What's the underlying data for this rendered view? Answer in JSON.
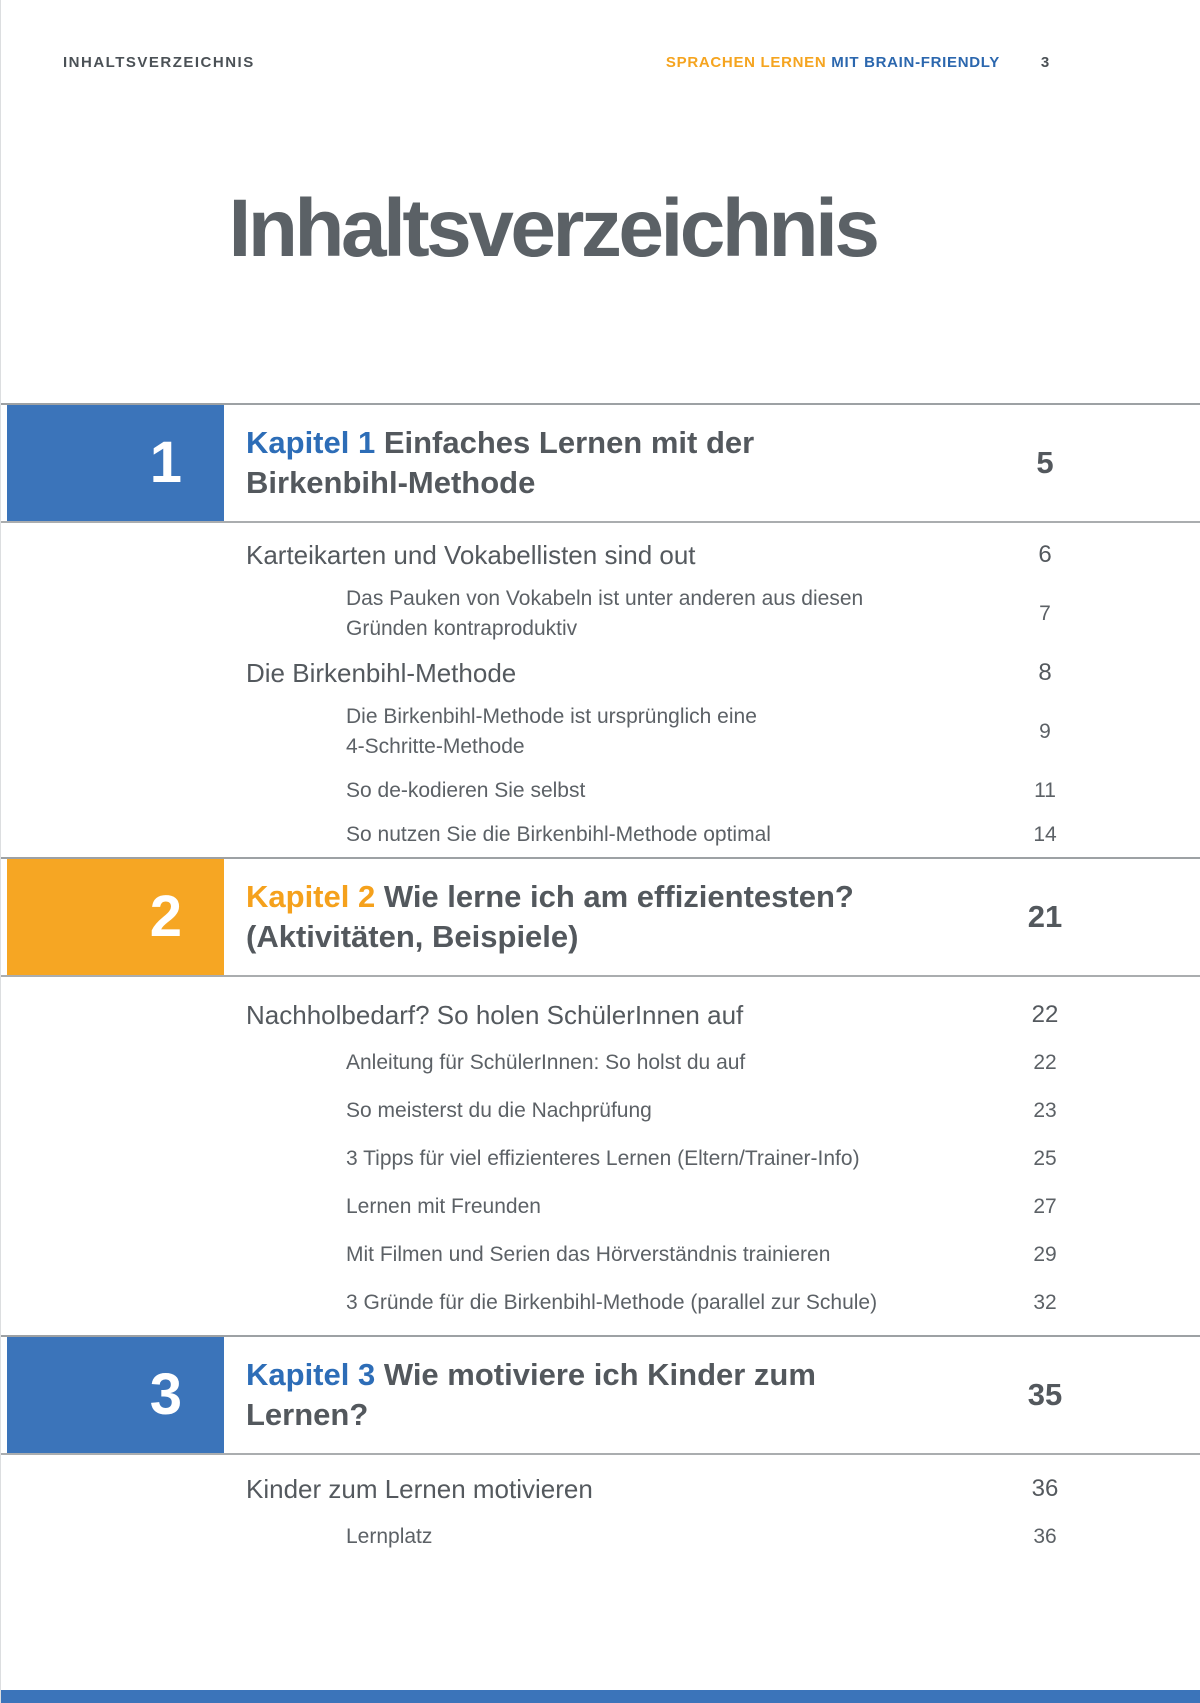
{
  "header": {
    "left_title": "INHALTSVERZEICHNIS",
    "brand_orange": "SPRACHEN LERNEN",
    "brand_blue": " MIT BRAIN-FRIENDLY",
    "page_number": "3"
  },
  "title": "Inhaltsverzeichnis",
  "colors": {
    "blue_box": "#3b74ba",
    "blue_text": "#2d6db7",
    "orange_box": "#f6a623",
    "orange_text": "#f5a11c"
  },
  "chapters": [
    {
      "number": "1",
      "accent": "blue",
      "label": "Kapitel 1",
      "title_lines": [
        "Einfaches Lernen mit der",
        "Birkenbihl-Methode"
      ],
      "page": "5",
      "entries": [
        {
          "level": 1,
          "lines": [
            "Karteikarten und Vokabellisten sind out"
          ],
          "page": "6"
        },
        {
          "level": 2,
          "lines": [
            "Das Pauken von Vokabeln ist unter anderen aus diesen",
            "Gründen kontraproduktiv"
          ],
          "page": "7"
        },
        {
          "level": 1,
          "lines": [
            "Die Birkenbihl-Methode"
          ],
          "page": "8"
        },
        {
          "level": 2,
          "lines": [
            "Die Birkenbihl-Methode ist ursprünglich eine",
            "4-Schritte-Methode"
          ],
          "page": "9"
        },
        {
          "level": 2,
          "lines": [
            "So de-kodieren Sie selbst"
          ],
          "page": "11"
        },
        {
          "level": 2,
          "lines": [
            "So nutzen Sie die Birkenbihl-Methode optimal"
          ],
          "page": "14"
        }
      ]
    },
    {
      "number": "2",
      "accent": "orange",
      "label": "Kapitel 2",
      "title_lines": [
        "Wie lerne ich am effizientesten?",
        "(Aktivitäten, Beispiele)"
      ],
      "page": "21",
      "entries": [
        {
          "level": 1,
          "lines": [
            "Nachholbedarf? So holen SchülerInnen auf"
          ],
          "page": "22"
        },
        {
          "level": 2,
          "lines": [
            "Anleitung für SchülerInnen: So holst du auf"
          ],
          "page": "22"
        },
        {
          "level": 2,
          "lines": [
            "So meisterst du die Nachprüfung"
          ],
          "page": "23"
        },
        {
          "level": 2,
          "lines": [
            "3 Tipps für viel effizienteres Lernen (Eltern/Trainer-Info)"
          ],
          "page": "25"
        },
        {
          "level": 2,
          "lines": [
            "Lernen mit Freunden"
          ],
          "page": "27"
        },
        {
          "level": 2,
          "lines": [
            "Mit Filmen und Serien das Hörverständnis trainieren"
          ],
          "page": "29"
        },
        {
          "level": 2,
          "lines": [
            "3 Gründe für die Birkenbihl-Methode (parallel zur Schule)"
          ],
          "page": "32"
        }
      ]
    },
    {
      "number": "3",
      "accent": "blue",
      "label": "Kapitel 3",
      "title_lines": [
        "Wie motiviere ich Kinder zum",
        "Lernen?"
      ],
      "page": "35",
      "entries": [
        {
          "level": 1,
          "lines": [
            "Kinder zum Lernen motivieren"
          ],
          "page": "36"
        },
        {
          "level": 2,
          "lines": [
            "Lernplatz"
          ],
          "page": "36"
        }
      ]
    }
  ]
}
